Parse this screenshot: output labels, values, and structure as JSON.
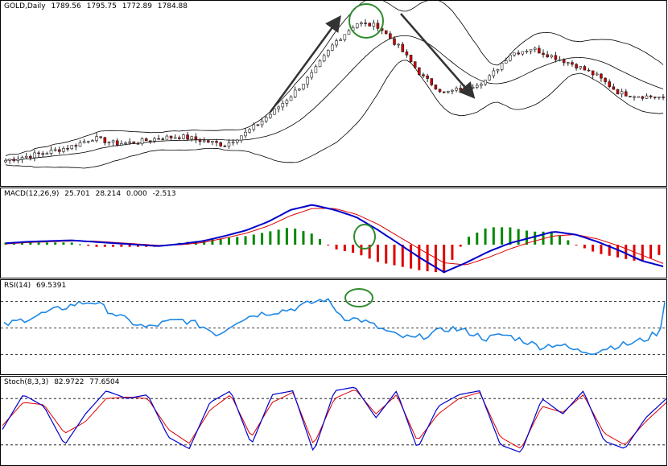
{
  "colors": {
    "bull_candle": "#222222",
    "bear_candle": "#cc0000",
    "bands": "#000000",
    "macd_line": "#0000cc",
    "signal_line": "#dd0000",
    "hist_pos": "#008800",
    "hist_neg": "#dd0000",
    "rsi_line": "#1e88e5",
    "stoch_main": "#0000cc",
    "stoch_signal": "#dd0000",
    "annotation_arrow": "#333333",
    "annotation_circle": "#2e8b2e"
  },
  "chart_data": [
    {
      "type": "candlestick",
      "title": "GOLD,Daily",
      "ohlc_readout": {
        "open": "1789.56",
        "high": "1795.75",
        "low": "1772.89",
        "close": "1784.88"
      },
      "overlays": [
        "Bollinger Bands"
      ],
      "approx_close_path": [
        1560,
        1575,
        1590,
        1610,
        1640,
        1620,
        1625,
        1640,
        1645,
        1630,
        1615,
        1660,
        1720,
        1790,
        1870,
        1980,
        2050,
        2040,
        1960,
        1860,
        1800,
        1820,
        1850,
        1940,
        1960,
        1930,
        1900,
        1860,
        1800,
        1790,
        1784.88
      ]
    },
    {
      "type": "line",
      "title": "MACD(12,26,9)",
      "readout": [
        "25.701",
        "28.214",
        "0.000",
        "-2.513"
      ],
      "series": [
        {
          "name": "MACD",
          "values": [
            2,
            4,
            5,
            6,
            4,
            2,
            0,
            -2,
            1,
            5,
            12,
            20,
            32,
            48,
            55,
            48,
            38,
            20,
            0,
            -20,
            -38,
            -25,
            -10,
            2,
            10,
            18,
            14,
            4,
            -8,
            -22,
            -30
          ]
        },
        {
          "name": "Signal",
          "values": [
            1,
            3,
            4,
            5,
            5,
            3,
            1,
            -1,
            0,
            3,
            9,
            16,
            26,
            40,
            50,
            50,
            42,
            28,
            10,
            -8,
            -25,
            -28,
            -18,
            -6,
            4,
            12,
            14,
            8,
            -2,
            -14,
            -26
          ]
        }
      ]
    },
    {
      "type": "line",
      "title": "RSI(14)",
      "readout": [
        "69.5391"
      ],
      "levels": [
        70,
        50,
        30
      ],
      "ylim": [
        20,
        80
      ],
      "series": [
        {
          "name": "RSI",
          "values": [
            52,
            56,
            60,
            64,
            68,
            70,
            62,
            55,
            50,
            54,
            56,
            52,
            45,
            55,
            60,
            62,
            64,
            68,
            72,
            58,
            56,
            50,
            44,
            42,
            46,
            50,
            47,
            42,
            45,
            41,
            36,
            38,
            33,
            32,
            36,
            38,
            42,
            50
          ]
        }
      ]
    },
    {
      "type": "line",
      "title": "Stoch(8,3,3)",
      "readout": [
        "82.9722",
        "77.6504"
      ],
      "levels": [
        80,
        20
      ],
      "ylim": [
        0,
        100
      ],
      "series": [
        {
          "name": "%K",
          "values": [
            40,
            85,
            70,
            20,
            60,
            90,
            80,
            85,
            30,
            15,
            75,
            90,
            20,
            85,
            90,
            10,
            90,
            95,
            55,
            90,
            15,
            70,
            85,
            90,
            20,
            10,
            80,
            60,
            90,
            25,
            15,
            55,
            80
          ]
        },
        {
          "name": "%D",
          "values": [
            45,
            75,
            72,
            35,
            50,
            80,
            82,
            80,
            40,
            22,
            65,
            85,
            30,
            75,
            88,
            20,
            80,
            92,
            60,
            85,
            25,
            60,
            80,
            88,
            30,
            15,
            70,
            62,
            85,
            35,
            20,
            50,
            75
          ]
        }
      ]
    }
  ]
}
